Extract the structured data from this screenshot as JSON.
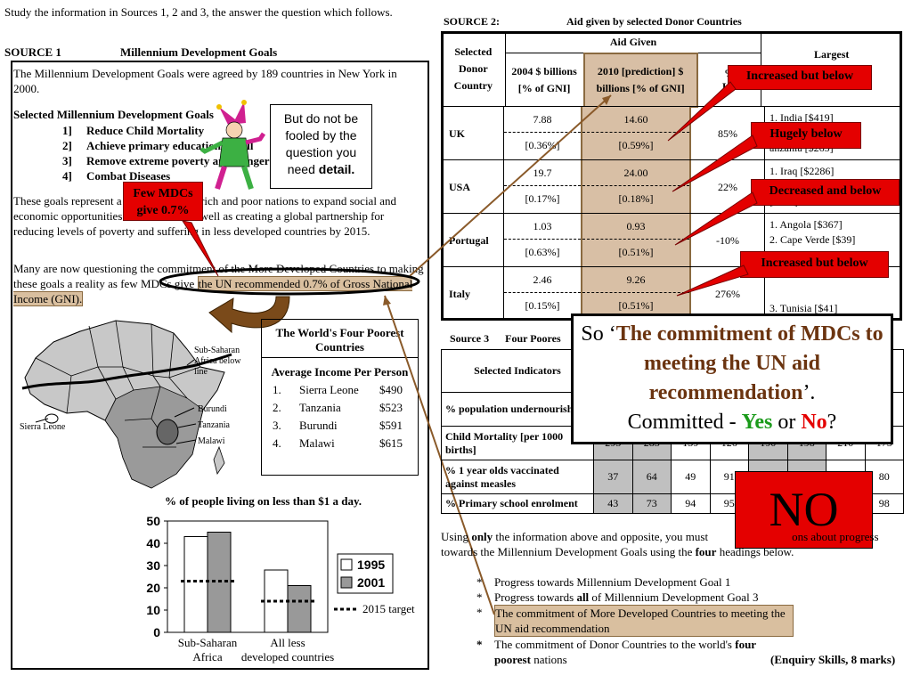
{
  "intro": "Study the information in Sources 1, 2 and 3, the answer the question which follows.",
  "source1": {
    "label": "SOURCE 1",
    "title": "Millennium Development Goals",
    "para1": "The Millennium Development Goals were agreed by 189 countries in New York in 2000.",
    "goals_heading": "Selected Millennium Development Goals",
    "goals": [
      {
        "num": "1]",
        "text": "Reduce Child Mortality"
      },
      {
        "num": "2]",
        "text": "Achieve primary education for all"
      },
      {
        "num": "3]",
        "text": "Remove extreme poverty and hunger"
      },
      {
        "num": "4]",
        "text": "Combat Diseases"
      }
    ],
    "para3": "These goals represent a commitment by rich and poor nations to expand social and economic opportunities of the world, as well as creating a global partnership for reducing levels of poverty and suffering in less developed countries by 2015.",
    "para4_a": "Many are now questioning the commitment of the More Developed Countries to making these goals a reality as few MDCs give ",
    "para4_hl": "the UN recommended 0.7% of Gross National Income (GNI).",
    "note": {
      "line": "But do not be fooled by the question you need ",
      "bold": "detail."
    },
    "callout": "Few MDCs give 0.7%"
  },
  "poorest": {
    "title": "The World's Four Poorest Countries",
    "subtitle": "Average Income Per Person",
    "rows": [
      {
        "n": "1.",
        "country": "Sierra Leone",
        "income": "$490"
      },
      {
        "n": "2.",
        "country": "Tanzania",
        "income": "$523"
      },
      {
        "n": "3.",
        "country": "Burundi",
        "income": "$591"
      },
      {
        "n": "4.",
        "country": "Malawi",
        "income": "$615"
      }
    ]
  },
  "map_labels": {
    "ssa": "Sub-Saharan Africa below line",
    "burundi": "Burundi",
    "tanzania": "Tanzania",
    "malawi": "Malawi",
    "sierra": "Sierra Leone"
  },
  "chart_data": {
    "type": "bar",
    "title": "% of people living on less than $1 a day.",
    "categories": [
      "Sub-Saharan Africa",
      "All less developed countries"
    ],
    "series": [
      {
        "name": "1995",
        "values": [
          43,
          28
        ],
        "color": "#ffffff"
      },
      {
        "name": "2001",
        "values": [
          45,
          21
        ],
        "color": "#999999"
      }
    ],
    "target": {
      "name": "2015 target",
      "values": [
        23,
        14
      ]
    },
    "yticks": [
      "0",
      "10",
      "20",
      "30",
      "40",
      "50"
    ],
    "ylim": [
      0,
      50
    ],
    "legend": "right"
  },
  "source2": {
    "label": "SOURCE 2:",
    "title": "Aid given by selected Donor Countries",
    "col_donor": "Selected Donor Country",
    "col_aid": "Aid Given",
    "col_2004": "2004 $ billions [% of GNI]",
    "col_2010": "2010 [prediction] $ billions [% of GNI]",
    "col_pct": "%",
    "col_inc": "Inc",
    "col_largest": "Largest",
    "rows": [
      {
        "country": "UK",
        "v2004": "7.88",
        "g2004": "[0.36%]",
        "v2010": "14.60",
        "g2010": "[0.59%]",
        "pct": "85%",
        "largest": [
          "1.  India [$419]",
          "7]",
          "anzania [$265]"
        ]
      },
      {
        "country": "USA",
        "v2004": "19.7",
        "g2004": "[0.17%]",
        "v2010": "24.00",
        "g2010": "[0.18%]",
        "pct": "22%",
        "largest": [
          "1.  Iraq [$2286]",
          "",
          "[$707]"
        ]
      },
      {
        "country": "Portugal",
        "v2004": "1.03",
        "g2004": "[0.63%]",
        "v2010": "0.93",
        "g2010": "[0.51%]",
        "pct": "-10%",
        "largest": [
          "1.  Angola [$367]",
          "2.  Cape Verde [$39]",
          ""
        ]
      },
      {
        "country": "Italy",
        "v2004": "2.46",
        "g2004": "[0.15%]",
        "v2010": "9.26",
        "g2010": "[0.51%]",
        "pct": "276%",
        "largest": [
          "",
          "",
          "3.  Tunisia [$41]"
        ]
      }
    ],
    "callouts": [
      "Increased but below",
      "Hugely below",
      "Decreased and below",
      "Increased but below"
    ]
  },
  "source3": {
    "label": "Source 3",
    "title": "Four Poores",
    "col": "Selected Indicators",
    "rows": [
      {
        "name": "% population undernourished",
        "cells": [
          "",
          "",
          "",
          "",
          "",
          "",
          "",
          ""
        ]
      },
      {
        "name": "Child Mortality [per 1000 births]",
        "cells": [
          "293",
          "283",
          "139",
          "126",
          "190",
          "198",
          "210",
          "175"
        ]
      },
      {
        "name": "% 1 year olds vaccinated against measles",
        "cells": [
          "37",
          "64",
          "49",
          "91",
          "",
          "",
          "",
          "80"
        ]
      },
      {
        "name": "% Primary school enrolment",
        "cells": [
          "43",
          "73",
          "94",
          "95",
          "",
          "",
          "",
          "98"
        ]
      }
    ]
  },
  "conclusion": {
    "so": "So ‘",
    "quote": "The commitment of MDCs to meeting the UN aid recommendation",
    "end": "’.",
    "committed": "Committed - ",
    "yes": "Yes",
    "or": " or ",
    "no": "No",
    "q": "?",
    "big": "NO"
  },
  "question": {
    "text_a": "Using ",
    "only": "only",
    "text_b": " the information above and opposite, you must",
    "text_c": "ons about progress towards the Millennium Development Goals using the ",
    "four": "four",
    "text_d": " headings below.",
    "bullets": [
      {
        "pre": "Progress towards Millennium Development Goal 1",
        "bold": "",
        "post": ""
      },
      {
        "pre": "Progress towards ",
        "bold": "all",
        "post": " of Millennium Development Goal 3"
      },
      {
        "pre": "The commitment of More Developed Countries to meeting the UN aid recommendation",
        "bold": "",
        "post": ""
      },
      {
        "pre": "The commitment of Donor Countries to the world's ",
        "bold": "four poorest",
        "post": " nations"
      }
    ],
    "marks": "(Enquiry Skills, 8 marks)"
  }
}
